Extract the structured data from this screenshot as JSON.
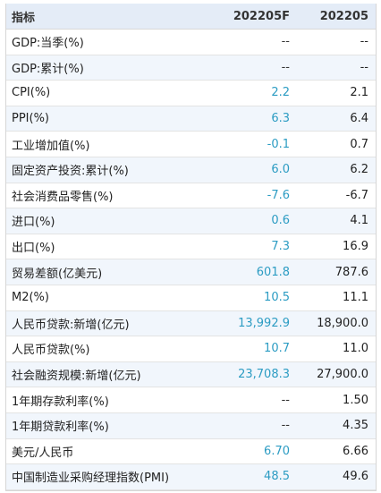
{
  "header": {
    "indicator": "指标",
    "forecast": "202205F",
    "actual": "202205"
  },
  "rows": [
    {
      "name": "GDP:当季(%)",
      "forecast": "--",
      "actual": "--"
    },
    {
      "name": "GDP:累计(%)",
      "forecast": "--",
      "actual": "--"
    },
    {
      "name": "CPI(%)",
      "forecast": "2.2",
      "actual": "2.1"
    },
    {
      "name": "PPI(%)",
      "forecast": "6.3",
      "actual": "6.4"
    },
    {
      "name": "工业增加值(%)",
      "forecast": "-0.1",
      "actual": "0.7"
    },
    {
      "name": "固定资产投资:累计(%)",
      "forecast": "6.0",
      "actual": "6.2"
    },
    {
      "name": "社会消费品零售(%)",
      "forecast": "-7.6",
      "actual": "-6.7"
    },
    {
      "name": "进口(%)",
      "forecast": "0.6",
      "actual": "4.1"
    },
    {
      "name": "出口(%)",
      "forecast": "7.3",
      "actual": "16.9"
    },
    {
      "name": "贸易差额(亿美元)",
      "forecast": "601.8",
      "actual": "787.6"
    },
    {
      "name": "M2(%)",
      "forecast": "10.5",
      "actual": "11.1"
    },
    {
      "name": "人民币贷款:新增(亿元)",
      "forecast": "13,992.9",
      "actual": "18,900.0"
    },
    {
      "name": "人民币贷款(%)",
      "forecast": "10.7",
      "actual": "11.0"
    },
    {
      "name": "社会融资规模:新增(亿元)",
      "forecast": "23,708.3",
      "actual": "27,900.0"
    },
    {
      "name": "1年期存款利率(%)",
      "forecast": "--",
      "actual": "1.50"
    },
    {
      "name": "1年期贷款利率(%)",
      "forecast": "--",
      "actual": "4.35"
    },
    {
      "name": "美元/人民币",
      "forecast": "6.70",
      "actual": "6.66"
    },
    {
      "name": "中国制造业采购经理指数(PMI)",
      "forecast": "48.5",
      "actual": "49.6"
    }
  ]
}
